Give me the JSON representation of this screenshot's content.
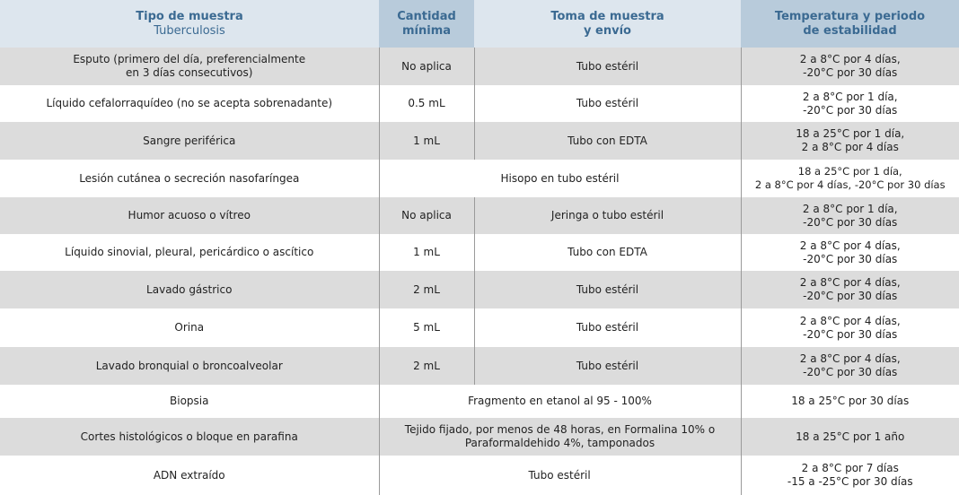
{
  "header": {
    "col1_title": "Tipo de muestra",
    "col1_sub": "Tuberculosis",
    "col2_line1": "Cantidad",
    "col2_line2": "mínima",
    "col3_line1": "Toma de muestra",
    "col3_line2": "y envío",
    "col4_line1": "Temperatura y periodo",
    "col4_line2": "de estabilidad"
  },
  "rows": [
    {
      "type_l1": "Esputo (primero del día, preferencialmente",
      "type_l2": "en 3 días consecutivos)",
      "qty": "No aplica",
      "collect": "Tubo estéril",
      "temp_l1": "2 a 8°C por 4 días,",
      "temp_l2": "-20°C por 30 días"
    },
    {
      "type_l1": "Líquido cefalorraquídeo (no se acepta sobrenadante)",
      "qty": "0.5 mL",
      "collect": "Tubo estéril",
      "temp_l1": "2 a 8°C por 1 día,",
      "temp_l2": "-20°C por 30 días"
    },
    {
      "type_l1": "Sangre periférica",
      "qty": "1 mL",
      "collect": "Tubo con EDTA",
      "temp_l1": "18 a 25°C por 1 día,",
      "temp_l2": "2 a 8°C por 4 días"
    },
    {
      "type_l1": "Lesión cutánea o secreción nasofaríngea",
      "merged": "Hisopo en tubo estéril",
      "temp_l1": "18 a 25°C por 1 día,",
      "temp_l2": "2 a 8°C por 4 días, -20°C por 30 días"
    },
    {
      "type_l1": "Humor acuoso o vítreo",
      "qty": "No aplica",
      "collect": "Jeringa o tubo estéril",
      "temp_l1": "2 a 8°C por 1 día,",
      "temp_l2": "-20°C por 30 días"
    },
    {
      "type_l1": "Líquido sinovial, pleural, pericárdico o ascítico",
      "qty": "1 mL",
      "collect": "Tubo con EDTA",
      "temp_l1": "2 a 8°C por 4 días,",
      "temp_l2": "-20°C por 30 días"
    },
    {
      "type_l1": "Lavado gástrico",
      "qty": "2 mL",
      "collect": "Tubo estéril",
      "temp_l1": "2 a 8°C por 4 días,",
      "temp_l2": "-20°C por 30 días"
    },
    {
      "type_l1": "Orina",
      "qty": "5 mL",
      "collect": "Tubo estéril",
      "temp_l1": "2 a 8°C por 4 días,",
      "temp_l2": "-20°C por 30 días"
    },
    {
      "type_l1": "Lavado bronquial o broncoalveolar",
      "qty": "2 mL",
      "collect": "Tubo estéril",
      "temp_l1": "2 a 8°C por 4 días,",
      "temp_l2": "-20°C por 30 días"
    },
    {
      "type_l1": "Biopsia",
      "merged": "Fragmento en etanol al 95 - 100%",
      "temp_l1": "18 a 25°C por 30 días"
    },
    {
      "type_l1": "Cortes histológicos o bloque en parafina",
      "merged_l1": "Tejido fijado, por menos de 48 horas, en Formalina 10% o",
      "merged_l2": "Paraformaldehido 4%, tamponados",
      "temp_l1": "18 a 25°C por 1 año"
    },
    {
      "type_l1": "ADN extraído",
      "merged": "Tubo estéril",
      "temp_l1": "2 a 8°C por 7 días",
      "temp_l2": "-15 a -25°C por 30 días"
    }
  ]
}
